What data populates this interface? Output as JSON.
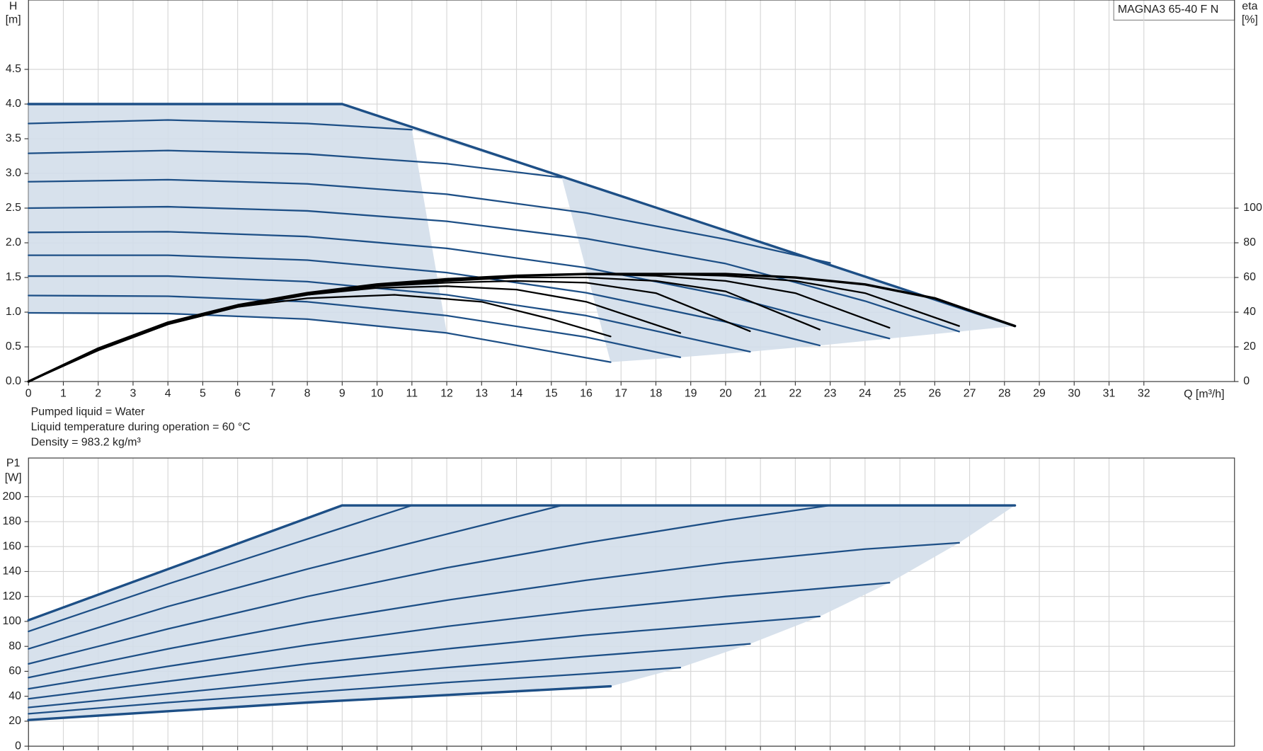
{
  "chart_data": [
    {
      "type": "line",
      "title": "MAGNA3 65-40 F N",
      "ylabel": "H",
      "yunit": "[m]",
      "y2label": "eta",
      "y2unit": "[%]",
      "xlabel": "Q [m³/h]",
      "annotations": [
        "Pumped liquid = Water",
        "Liquid temperature during operation = 60 °C",
        "Density = 983.2 kg/m³"
      ],
      "xlim": [
        0,
        34.6
      ],
      "xticks": [
        0,
        1,
        2,
        3,
        4,
        5,
        6,
        7,
        8,
        9,
        10,
        11,
        12,
        13,
        14,
        15,
        16,
        17,
        18,
        19,
        20,
        21,
        22,
        23,
        24,
        25,
        26,
        27,
        28,
        29,
        30,
        31,
        32
      ],
      "ylim": [
        0,
        5.5
      ],
      "yticks": [
        {
          "value": 0,
          "label": "0.0"
        },
        {
          "value": 0.5,
          "label": "0.5"
        },
        {
          "value": 1,
          "label": "1.0"
        },
        {
          "value": 1.5,
          "label": "1.5"
        },
        {
          "value": 2,
          "label": "2.0"
        },
        {
          "value": 2.5,
          "label": "2.5"
        },
        {
          "value": 3,
          "label": "3.0"
        },
        {
          "value": 3.5,
          "label": "3.5"
        },
        {
          "value": 4,
          "label": "4.0"
        },
        {
          "value": 4.5,
          "label": "4.5"
        }
      ],
      "y2lim": [
        0,
        220
      ],
      "y2ticks": [
        0,
        20,
        40,
        60,
        80,
        100
      ],
      "grid": true,
      "fill": "#d3deea",
      "series": [
        {
          "color": "#1d4f86",
          "x": [
            0,
            9,
            28.3
          ],
          "values": [
            4.0,
            4.0,
            0.8
          ]
        },
        {
          "color": "#1d4f86",
          "x": [
            0,
            4,
            8,
            11
          ],
          "values": [
            3.72,
            3.77,
            3.72,
            3.63
          ]
        },
        {
          "color": "#1d4f86",
          "x": [
            0,
            4,
            8,
            12,
            15.3
          ],
          "values": [
            3.29,
            3.33,
            3.28,
            3.14,
            2.94
          ]
        },
        {
          "color": "#1d4f86",
          "x": [
            0,
            4,
            8,
            12,
            16,
            20,
            23
          ],
          "values": [
            2.88,
            2.91,
            2.85,
            2.7,
            2.43,
            2.05,
            1.71
          ]
        },
        {
          "color": "#1d4f86",
          "x": [
            0,
            4,
            8,
            12,
            16,
            20,
            24,
            26.7
          ],
          "values": [
            2.5,
            2.52,
            2.46,
            2.31,
            2.06,
            1.7,
            1.16,
            0.72
          ]
        },
        {
          "color": "#1d4f86",
          "x": [
            0,
            4,
            8,
            12,
            16,
            20,
            24.7
          ],
          "values": [
            2.15,
            2.16,
            2.09,
            1.92,
            1.64,
            1.24,
            0.62
          ]
        },
        {
          "color": "#1d4f86",
          "x": [
            0,
            4,
            8,
            12,
            16,
            20,
            22.7
          ],
          "values": [
            1.82,
            1.82,
            1.75,
            1.57,
            1.28,
            0.86,
            0.52
          ]
        },
        {
          "color": "#1d4f86",
          "x": [
            0,
            4,
            8,
            12,
            16,
            20.7
          ],
          "values": [
            1.52,
            1.52,
            1.44,
            1.25,
            0.95,
            0.43
          ]
        },
        {
          "color": "#1d4f86",
          "x": [
            0,
            4,
            8,
            12,
            16,
            18.7
          ],
          "values": [
            1.24,
            1.23,
            1.15,
            0.95,
            0.64,
            0.35
          ]
        },
        {
          "color": "#1d4f86",
          "x": [
            0,
            4,
            8,
            12,
            16.7
          ],
          "values": [
            0.99,
            0.98,
            0.9,
            0.7,
            0.28
          ]
        },
        {
          "color": "#000000",
          "axis": "y2",
          "x": [
            0,
            2,
            4,
            6,
            8,
            10.5,
            13,
            15,
            16.7
          ],
          "values": [
            0,
            18,
            33,
            43,
            48,
            50,
            46,
            36,
            26
          ]
        },
        {
          "color": "#000000",
          "axis": "y2",
          "x": [
            0,
            2,
            4,
            6,
            8,
            10,
            12,
            14,
            16,
            18.7
          ],
          "values": [
            0,
            18,
            33,
            43,
            50,
            54,
            55,
            53,
            46,
            28
          ]
        },
        {
          "color": "#000000",
          "axis": "y2",
          "x": [
            0,
            2,
            4,
            6,
            8,
            10,
            12,
            14,
            16,
            18,
            20.7
          ],
          "values": [
            0,
            19,
            34,
            44,
            50,
            55,
            57,
            58,
            57,
            51,
            29
          ]
        },
        {
          "color": "#000000",
          "axis": "y2",
          "x": [
            0,
            2,
            4,
            6,
            8,
            10,
            12,
            14,
            16,
            18,
            20,
            22.7
          ],
          "values": [
            0,
            19,
            34,
            44,
            51,
            55,
            58,
            60,
            60,
            58,
            52,
            30
          ]
        },
        {
          "color": "#000000",
          "axis": "y2",
          "x": [
            0,
            2,
            4,
            6,
            8,
            10,
            12,
            14,
            16,
            18,
            20,
            22,
            24.7
          ],
          "values": [
            0,
            19,
            34,
            44,
            51,
            56,
            59,
            61,
            62,
            61,
            58,
            51,
            31
          ]
        },
        {
          "color": "#000000",
          "axis": "y2",
          "x": [
            0,
            2,
            4,
            6,
            8,
            10,
            12,
            14,
            16,
            18,
            20,
            22,
            24,
            26.7
          ],
          "values": [
            0,
            19,
            34,
            44,
            51,
            56,
            59,
            61,
            62,
            62,
            61,
            58,
            51,
            32
          ]
        },
        {
          "color": "#000000",
          "axis": "y2",
          "x": [
            0,
            2,
            4,
            6,
            8,
            10,
            12,
            14,
            16,
            18,
            20,
            22,
            24,
            26,
            28.3
          ],
          "values": [
            0,
            19,
            34,
            44,
            51,
            56,
            59,
            61,
            62,
            62,
            62,
            60,
            56,
            48,
            32
          ]
        }
      ]
    },
    {
      "type": "line",
      "ylabel": "P1",
      "yunit": "[W]",
      "ylim": [
        0,
        231
      ],
      "yticks": [
        0,
        20,
        40,
        60,
        80,
        100,
        120,
        140,
        160,
        180,
        200
      ],
      "grid": true,
      "fill": "#d3deea",
      "series": [
        {
          "color": "#1d4f86",
          "x": [
            0,
            9,
            28.3
          ],
          "values": [
            101,
            193,
            193
          ]
        },
        {
          "color": "#1d4f86",
          "x": [
            0,
            4,
            8,
            11
          ],
          "values": [
            92,
            130,
            166,
            193
          ]
        },
        {
          "color": "#1d4f86",
          "x": [
            0,
            4,
            8,
            12,
            15.3
          ],
          "values": [
            78,
            112,
            142,
            170,
            193
          ]
        },
        {
          "color": "#1d4f86",
          "x": [
            0,
            4,
            8,
            12,
            16,
            20,
            23
          ],
          "values": [
            66,
            94,
            120,
            143,
            163,
            181,
            193
          ]
        },
        {
          "color": "#1d4f86",
          "x": [
            0,
            4,
            8,
            12,
            16,
            20,
            24,
            26.7
          ],
          "values": [
            55,
            78,
            99,
            117,
            133,
            147,
            158,
            163
          ]
        },
        {
          "color": "#1d4f86",
          "x": [
            0,
            4,
            8,
            12,
            16,
            20,
            24.7
          ],
          "values": [
            46,
            64,
            81,
            96,
            109,
            120,
            131
          ]
        },
        {
          "color": "#1d4f86",
          "x": [
            0,
            4,
            8,
            12,
            16,
            20,
            22.7
          ],
          "values": [
            38,
            52,
            66,
            78,
            89,
            98,
            104
          ]
        },
        {
          "color": "#1d4f86",
          "x": [
            0,
            4,
            8,
            12,
            16,
            20.7
          ],
          "values": [
            31,
            42,
            53,
            63,
            72,
            82
          ]
        },
        {
          "color": "#1d4f86",
          "x": [
            0,
            4,
            8,
            12,
            16,
            18.7
          ],
          "values": [
            26,
            35,
            43,
            51,
            58,
            63
          ]
        },
        {
          "color": "#1d4f86",
          "x": [
            0,
            4,
            8,
            12,
            16.7
          ],
          "values": [
            21,
            28,
            35,
            41,
            48
          ]
        }
      ]
    }
  ]
}
